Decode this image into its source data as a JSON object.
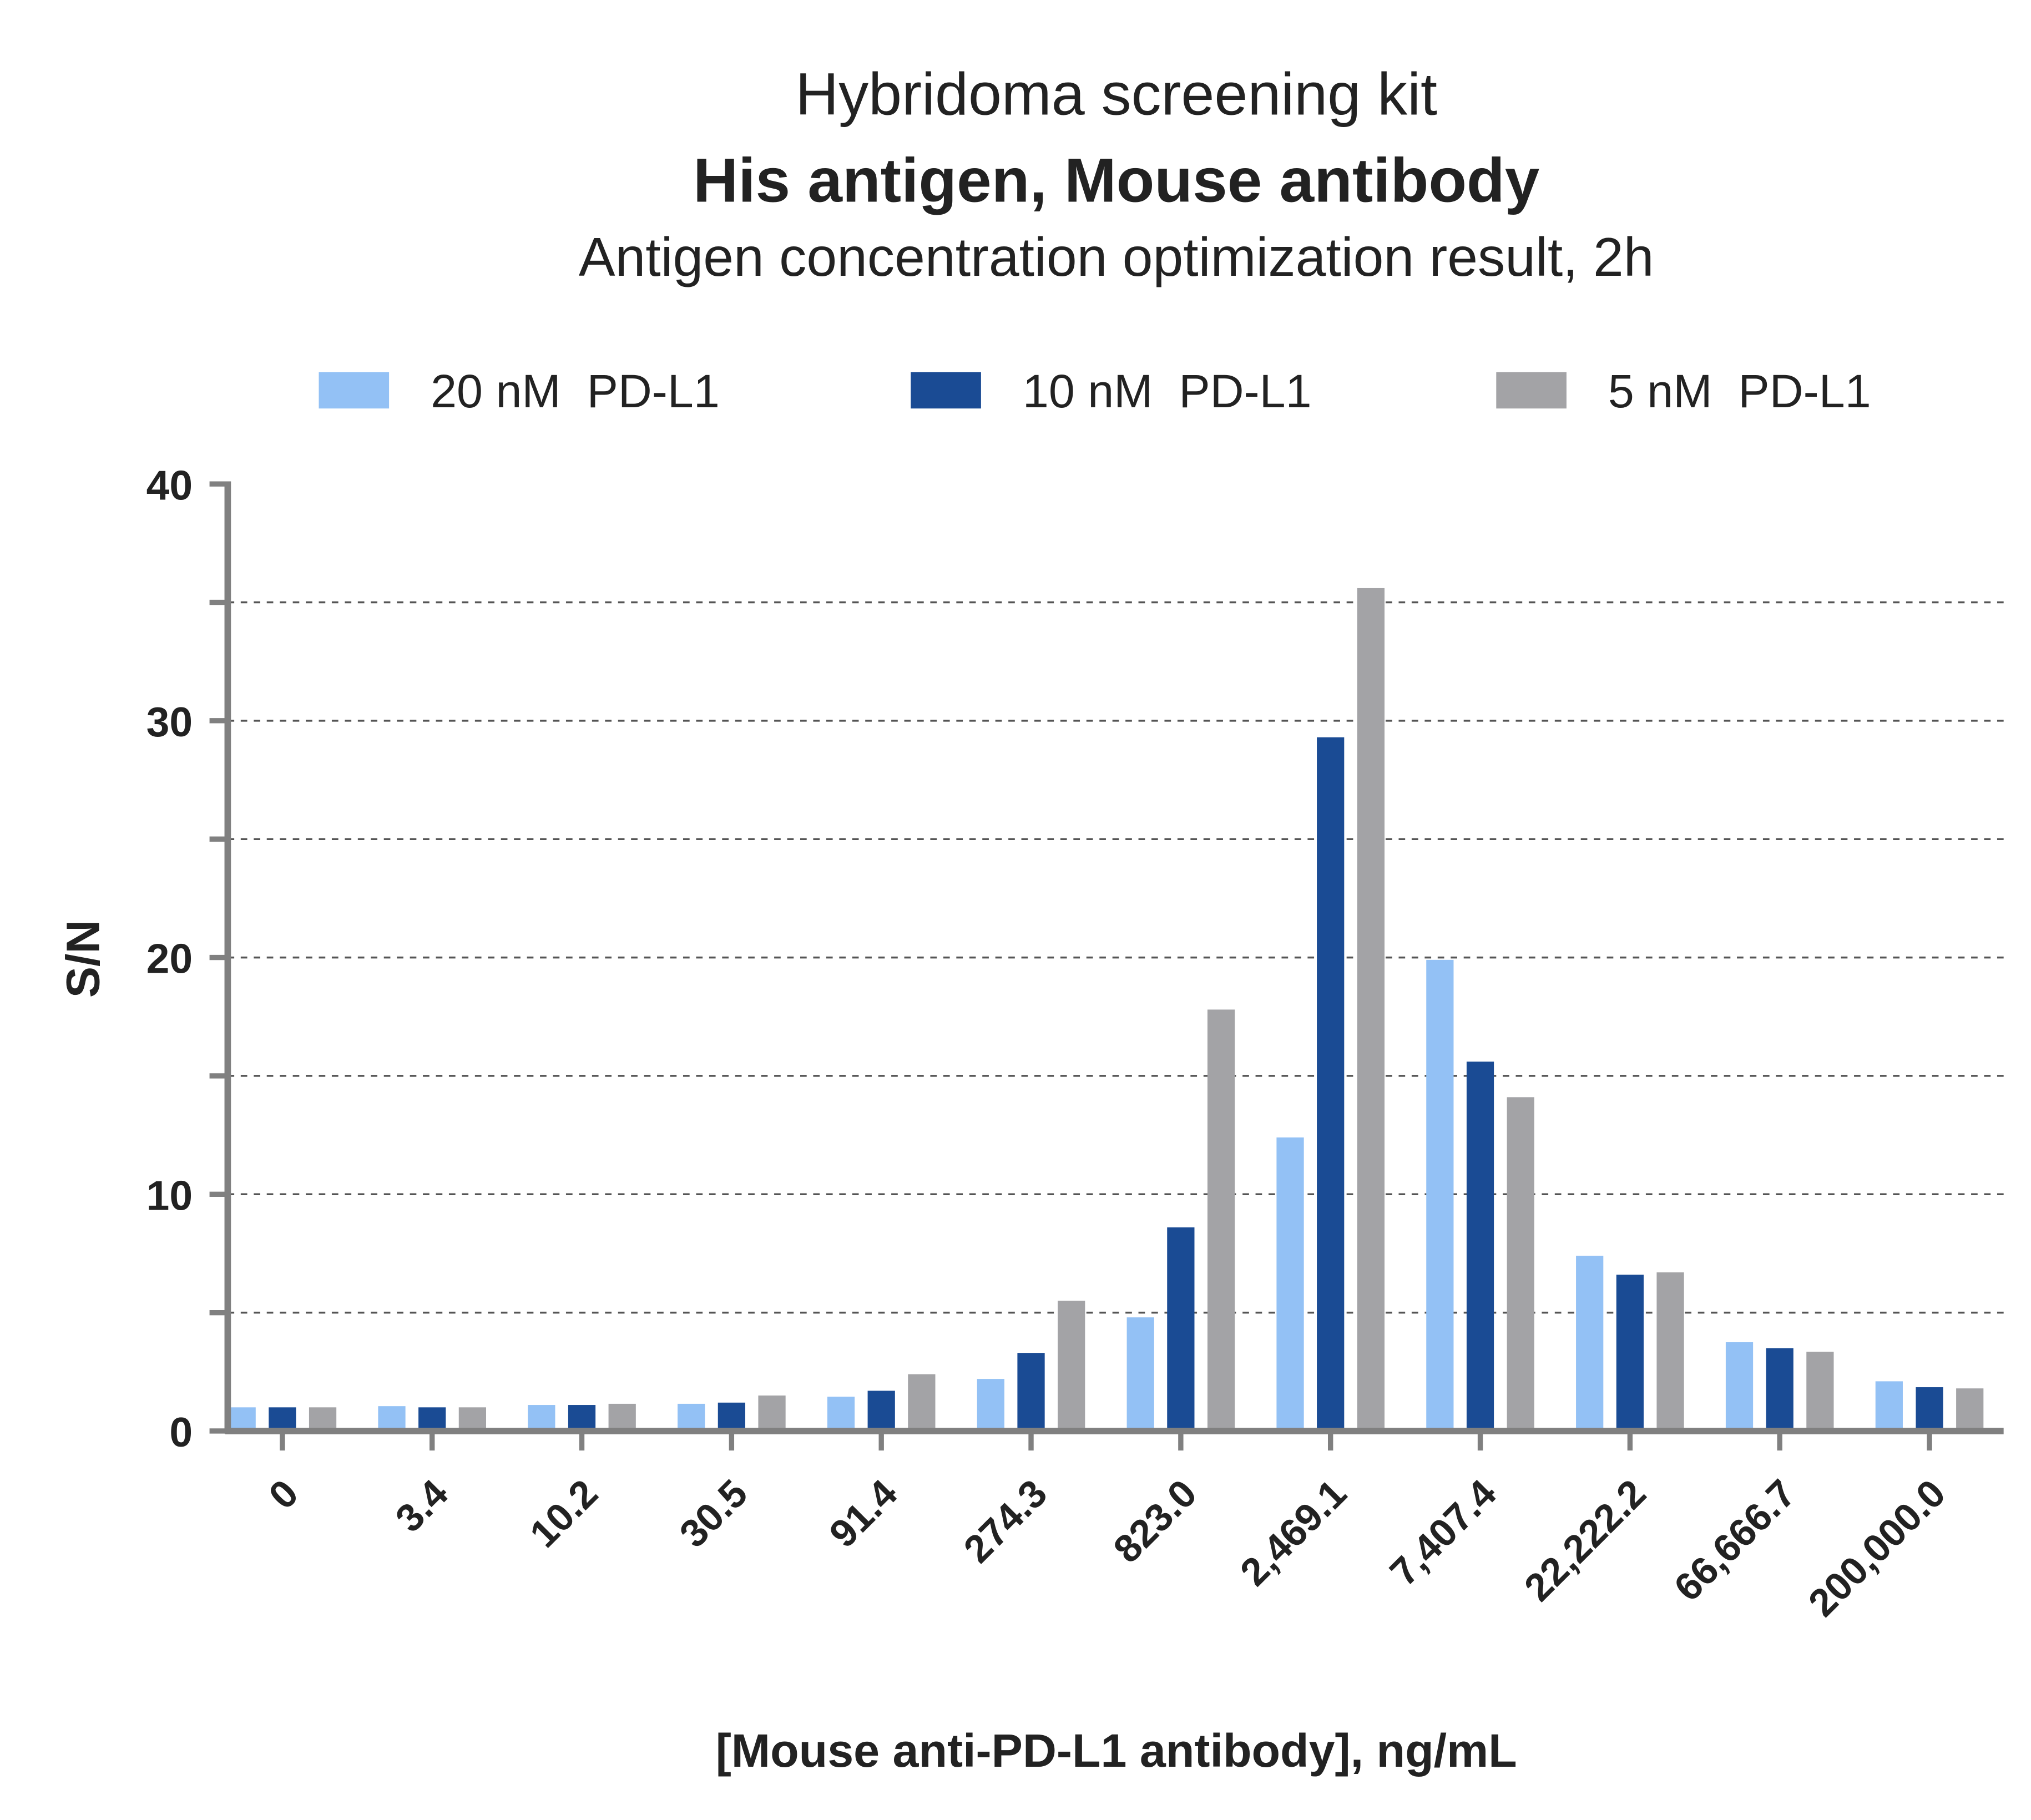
{
  "chart_data": {
    "type": "bar",
    "title": "Hybridoma screening kit",
    "subtitle_bold": "His antigen, Mouse antibody",
    "subtitle": "Antigen concentration optimization result, 2h",
    "x_label": "[Mouse anti-PD-L1 antibody], ng/mL",
    "y_label": "S/N",
    "categories": [
      "0",
      "3.4",
      "10.2",
      "30.5",
      "91.4",
      "274.3",
      "823.0",
      "2,469.1",
      "7,407.4",
      "22,222.2",
      "66,666.7",
      "200,000.0"
    ],
    "series": [
      {
        "name": "20 nM  PD-L1",
        "color": "#93c1f5",
        "values": [
          1.0,
          1.05,
          1.1,
          1.15,
          1.45,
          2.2,
          4.8,
          12.4,
          19.9,
          7.4,
          3.75,
          2.1
        ]
      },
      {
        "name": "10 nM  PD-L1",
        "color": "#1a4b94",
        "values": [
          1.0,
          1.0,
          1.1,
          1.2,
          1.7,
          3.3,
          8.6,
          29.3,
          15.6,
          6.6,
          3.5,
          1.85
        ]
      },
      {
        "name": "5 nM  PD-L1",
        "color": "#a3a3a6",
        "values": [
          1.0,
          1.0,
          1.15,
          1.5,
          2.4,
          5.5,
          17.8,
          35.6,
          14.1,
          6.7,
          3.35,
          1.8
        ]
      }
    ],
    "ylim": [
      0,
      40
    ],
    "yticks": [
      0,
      10,
      20,
      30,
      40
    ],
    "yticks_minor": [
      5,
      15,
      25,
      35
    ],
    "grid": true,
    "legend": "top"
  }
}
